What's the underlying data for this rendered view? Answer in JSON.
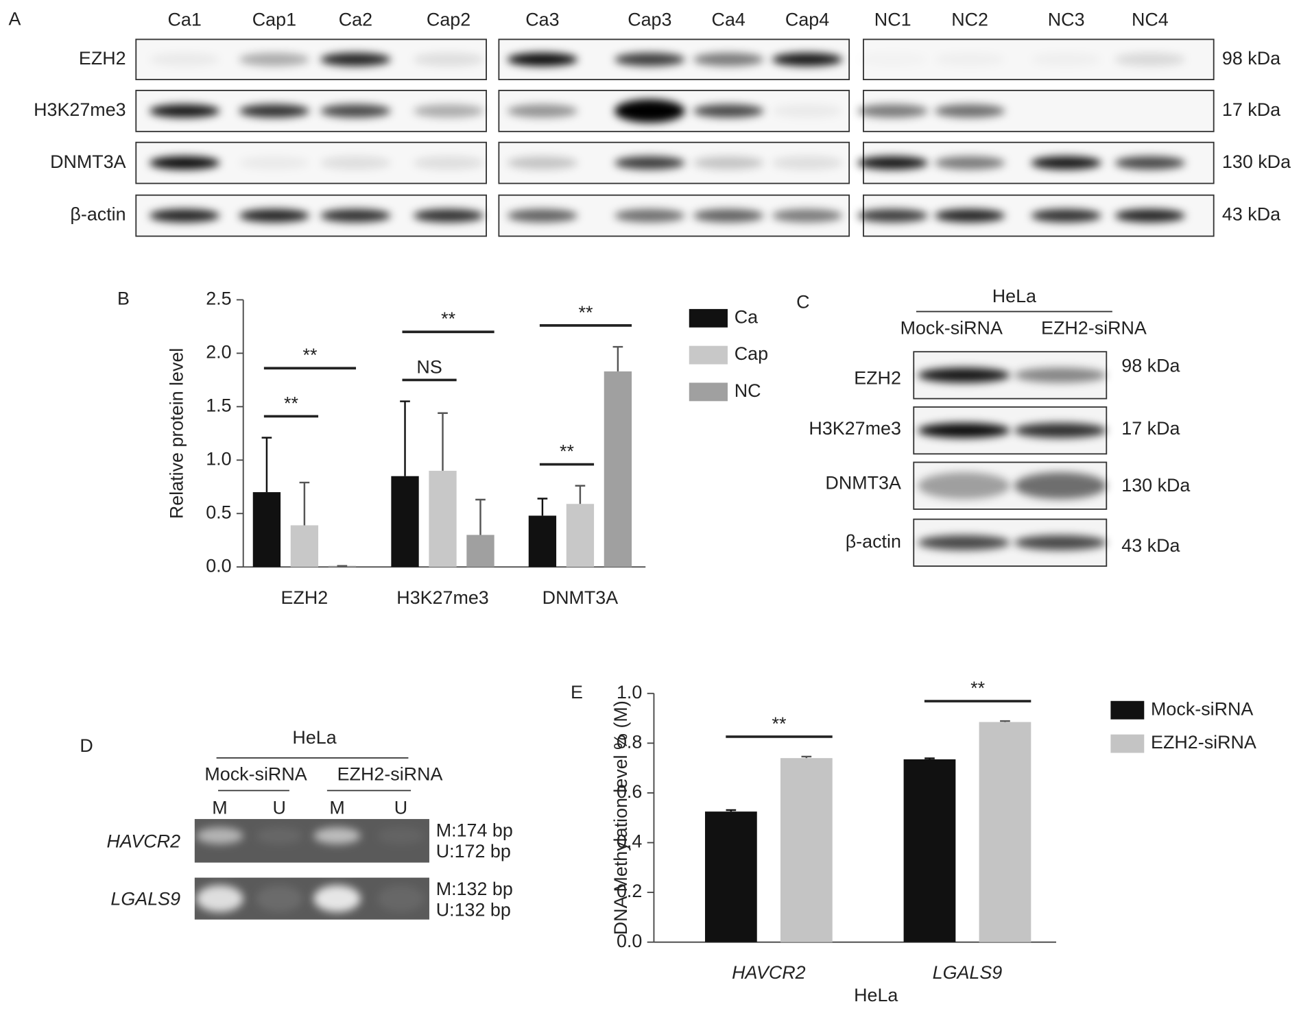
{
  "panels": {
    "A": {
      "label": "A",
      "lanes": [
        "Ca1",
        "Cap1",
        "Ca2",
        "Cap2",
        "Ca3",
        "Cap3",
        "Ca4",
        "Cap4",
        "NC1",
        "NC2",
        "NC3",
        "NC4"
      ],
      "rows": [
        "EZH2",
        "H3K27me3",
        "DNMT3A",
        "β-actin"
      ],
      "sizes": [
        "98 kDa",
        "17 kDa",
        "130 kDa",
        "43 kDa"
      ]
    },
    "C": {
      "label": "C",
      "cell": "HeLa",
      "groups": [
        "Mock-siRNA",
        "EZH2-siRNA"
      ],
      "rows": [
        "EZH2",
        "H3K27me3",
        "DNMT3A",
        "β-actin"
      ],
      "sizes": [
        "98 kDa",
        "17 kDa",
        "130 kDa",
        "43 kDa"
      ]
    },
    "D": {
      "label": "D",
      "cell": "HeLa",
      "groups": [
        "Mock-siRNA",
        "EZH2-siRNA"
      ],
      "lanes": [
        "M",
        "U",
        "M",
        "U"
      ],
      "genes": [
        "HAVCR2",
        "LGALS9"
      ],
      "sizes": [
        [
          "M:174 bp",
          "U:172 bp"
        ],
        [
          "M:132 bp",
          "U:132 bp"
        ]
      ]
    }
  },
  "chart_data": [
    {
      "type": "bar",
      "label": "B",
      "ylabel": "Relative protein level",
      "categories": [
        "EZH2",
        "H3K27me3",
        "DNMT3A"
      ],
      "series": [
        {
          "name": "Ca",
          "color": "#111111",
          "values": [
            0.7,
            0.85,
            0.48
          ],
          "errors": [
            0.51,
            0.7,
            0.16
          ]
        },
        {
          "name": "Cap",
          "color": "#c8c8c8",
          "values": [
            0.39,
            0.9,
            0.59
          ],
          "errors": [
            0.4,
            0.54,
            0.17
          ]
        },
        {
          "name": "NC",
          "color": "#a0a0a0",
          "values": [
            0.01,
            0.3,
            1.83
          ],
          "errors": [
            0,
            0.33,
            0.23
          ]
        }
      ],
      "ylim": [
        0,
        2.5
      ],
      "yticks": [
        {
          "value": 0,
          "label": "0.0"
        },
        0.5,
        {
          "value": 1,
          "label": "1.0"
        },
        1.5,
        {
          "value": 2,
          "label": "2.0"
        },
        2.5
      ],
      "annotations": [
        {
          "text": "**",
          "category": "EZH2",
          "between": [
            "Ca",
            "Cap"
          ]
        },
        {
          "text": "**",
          "category": "EZH2",
          "between": [
            "Ca",
            "NC"
          ]
        },
        {
          "text": "NS",
          "category": "H3K27me3",
          "between": [
            "Ca",
            "Cap"
          ]
        },
        {
          "text": "**",
          "category": "H3K27me3",
          "between": [
            "Ca",
            "NC"
          ]
        },
        {
          "text": "**",
          "category": "DNMT3A",
          "between": [
            "Ca",
            "Cap"
          ]
        },
        {
          "text": "**",
          "category": "DNMT3A",
          "between": [
            "Ca",
            "NC"
          ]
        }
      ],
      "legend": "right"
    },
    {
      "type": "bar",
      "label": "E",
      "ylabel": "DNA Methylation level % (M)",
      "xlabel": "HeLa",
      "categories": [
        "HAVCR2",
        "LGALS9"
      ],
      "category_font_style": "italic",
      "series": [
        {
          "name": "Mock-siRNA",
          "color": "#111111",
          "values": [
            0.525,
            0.735
          ],
          "errors": [
            0.006,
            0.004
          ]
        },
        {
          "name": "EZH2-siRNA",
          "color": "#c4c4c4",
          "values": [
            0.74,
            0.885
          ],
          "errors": [
            0.006,
            0.004
          ]
        }
      ],
      "ylim": [
        0,
        1
      ],
      "yticks": [
        {
          "value": 0,
          "label": "0.0"
        },
        0.2,
        0.4,
        0.6,
        0.8,
        {
          "value": 1,
          "label": "1.0"
        }
      ],
      "annotations": [
        {
          "text": "**",
          "category": "HAVCR2",
          "between": [
            "Mock-siRNA",
            "EZH2-siRNA"
          ]
        },
        {
          "text": "**",
          "category": "LGALS9",
          "between": [
            "Mock-siRNA",
            "EZH2-siRNA"
          ]
        }
      ],
      "legend": "right"
    }
  ]
}
